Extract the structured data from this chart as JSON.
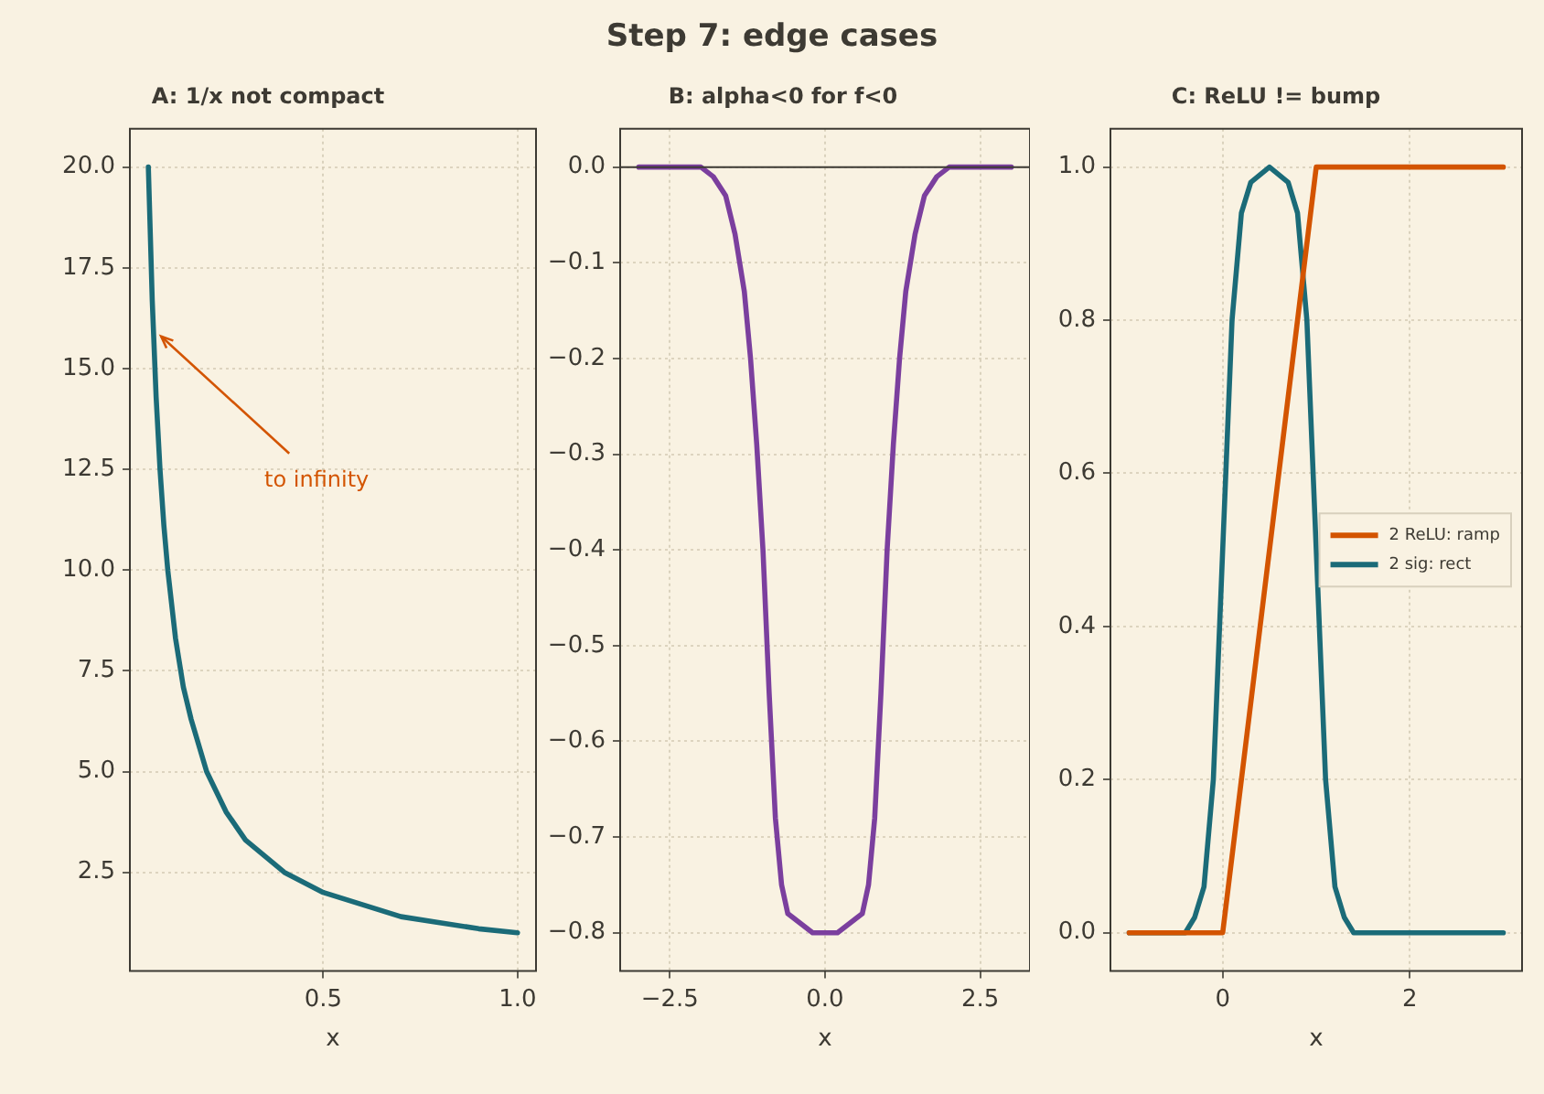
{
  "chart_data": [
    {
      "type": "other",
      "title": "Step 7: edge cases"
    },
    {
      "type": "line",
      "title": "A: 1/x not compact",
      "xlabel": "x",
      "xlim": [
        0.0025,
        1.0475
      ],
      "ylim": [
        0.05,
        20.95
      ],
      "xticks": [
        0.5,
        {
          "value": 1,
          "label": "1.0"
        }
      ],
      "yticks": [
        {
          "value": 2.5,
          "label": "2.5"
        },
        {
          "value": 5,
          "label": "5.0"
        },
        {
          "value": 7.5,
          "label": "7.5"
        },
        {
          "value": 10,
          "label": "10.0"
        },
        {
          "value": 12.5,
          "label": "12.5"
        },
        {
          "value": 15,
          "label": "15.0"
        },
        {
          "value": 17.5,
          "label": "17.5"
        },
        {
          "value": 20,
          "label": "20.0"
        }
      ],
      "grid": true,
      "marker": "none",
      "line_style": "solid",
      "x": [
        0.05,
        0.06,
        0.07,
        0.08,
        0.09,
        0.1,
        0.12,
        0.14,
        0.16,
        0.2,
        0.25,
        0.3,
        0.4,
        0.5,
        0.6,
        0.7,
        0.8,
        0.9,
        1.0
      ],
      "series": [
        {
          "color": "#1b6b78",
          "values": [
            20,
            16.7,
            14.3,
            12.5,
            11.1,
            10,
            8.3,
            7.1,
            6.3,
            5,
            4,
            3.3,
            2.5,
            2,
            1.7,
            1.4,
            1.25,
            1.1,
            1
          ]
        }
      ],
      "annotations": [
        {
          "text": "to infinity",
          "x": 0.083,
          "y": 15.8
        }
      ]
    },
    {
      "type": "line",
      "title": "B: alpha<0 for f<0",
      "xlabel": "x",
      "xlim": [
        -3.3,
        3.3
      ],
      "ylim": [
        -0.84,
        0.04
      ],
      "xticks": [
        {
          "value": -2.5,
          "label": "−2.5"
        },
        {
          "value": 0,
          "label": "0.0"
        },
        2.5
      ],
      "yticks": [
        {
          "value": 0,
          "label": "0.0"
        },
        {
          "value": -0.1,
          "label": "−0.1"
        },
        {
          "value": -0.2,
          "label": "−0.2"
        },
        {
          "value": -0.3,
          "label": "−0.3"
        },
        {
          "value": -0.4,
          "label": "−0.4"
        },
        {
          "value": -0.5,
          "label": "−0.5"
        },
        {
          "value": -0.6,
          "label": "−0.6"
        },
        {
          "value": -0.7,
          "label": "−0.7"
        },
        {
          "value": -0.8,
          "label": "−0.8"
        }
      ],
      "grid": true,
      "marker": "none",
      "line_style": "solid",
      "x": [
        -3,
        -2,
        -1.8,
        -1.6,
        -1.45,
        -1.3,
        -1.2,
        -1.1,
        -1,
        -0.9,
        -0.8,
        -0.7,
        -0.6,
        -0.4,
        -0.2,
        0,
        0.2,
        0.4,
        0.6,
        0.7,
        0.8,
        0.9,
        1,
        1.1,
        1.2,
        1.3,
        1.45,
        1.6,
        1.8,
        2,
        3
      ],
      "series": [
        {
          "color": "#7b3f9e",
          "values": [
            0,
            0,
            -0.01,
            -0.03,
            -0.07,
            -0.13,
            -0.2,
            -0.29,
            -0.4,
            -0.55,
            -0.68,
            -0.75,
            -0.78,
            -0.79,
            -0.8,
            -0.8,
            -0.8,
            -0.79,
            -0.78,
            -0.75,
            -0.68,
            -0.55,
            -0.4,
            -0.29,
            -0.2,
            -0.13,
            -0.07,
            -0.03,
            -0.01,
            0,
            0
          ]
        }
      ],
      "ref_lines": [
        {
          "axis": "y",
          "value": 0,
          "color": "#3d3a33"
        }
      ]
    },
    {
      "type": "line",
      "title": "C: ReLU != bump",
      "xlabel": "x",
      "xlim": [
        -1.2,
        3.2
      ],
      "ylim": [
        -0.05,
        1.05
      ],
      "xticks": [
        0,
        2
      ],
      "yticks": [
        {
          "value": 0,
          "label": "0.0"
        },
        {
          "value": 0.2,
          "label": "0.2"
        },
        {
          "value": 0.4,
          "label": "0.4"
        },
        {
          "value": 0.6,
          "label": "0.6"
        },
        {
          "value": 0.8,
          "label": "0.8"
        },
        {
          "value": 1,
          "label": "1.0"
        }
      ],
      "grid": true,
      "legend": "right",
      "marker": "none",
      "line_style": "solid",
      "series": [
        {
          "name": "2 ReLU: ramp",
          "color": "#d35400",
          "x": [
            -1,
            0,
            1,
            3
          ],
          "values": [
            0,
            0,
            1,
            1
          ]
        },
        {
          "name": "2 sig: rect",
          "color": "#1b6b78",
          "x": [
            -1,
            -0.4,
            -0.3,
            -0.2,
            -0.1,
            0,
            0.1,
            0.2,
            0.3,
            0.5,
            0.7,
            0.8,
            0.9,
            1,
            1.1,
            1.2,
            1.3,
            1.4,
            3
          ],
          "values": [
            0,
            0,
            0.02,
            0.06,
            0.2,
            0.5,
            0.8,
            0.94,
            0.98,
            1,
            0.98,
            0.94,
            0.8,
            0.5,
            0.2,
            0.06,
            0.02,
            0,
            0
          ]
        }
      ]
    }
  ]
}
